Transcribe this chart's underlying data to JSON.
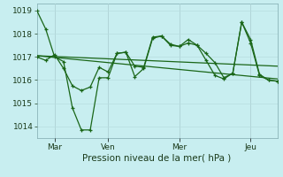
{
  "xlabel": "Pression niveau de la mer( hPa )",
  "bg_color": "#c8eef0",
  "grid_color": "#b8dde0",
  "line_color": "#1a6618",
  "vline_color": "#9abcbe",
  "ylim": [
    1013.5,
    1019.3
  ],
  "xlim": [
    0,
    27
  ],
  "x_ticks": [
    2,
    8,
    16,
    24
  ],
  "x_labels": [
    "Mar",
    "Ven",
    "Mer",
    "Jeu"
  ],
  "series_jagged1": [
    0,
    1019.0,
    1,
    1018.2,
    2,
    1017.0,
    3,
    1016.8,
    4,
    1014.8,
    5,
    1013.85,
    6,
    1013.85,
    7,
    1016.1,
    8,
    1016.1,
    9,
    1017.15,
    10,
    1017.2,
    11,
    1016.15,
    12,
    1016.5,
    13,
    1017.8,
    14,
    1017.9,
    15,
    1017.5,
    16,
    1017.45,
    17,
    1017.6,
    18,
    1017.5,
    19,
    1016.85,
    20,
    1016.2,
    21,
    1016.05,
    22,
    1016.3,
    23,
    1018.5,
    24,
    1017.6,
    25,
    1016.2,
    26,
    1016.0,
    27,
    1015.95
  ],
  "series_trend1_x": [
    0,
    27
  ],
  "series_trend1_y": [
    1017.05,
    1016.6
  ],
  "series_trend2_x": [
    0,
    27
  ],
  "series_trend2_y": [
    1017.05,
    1016.05
  ],
  "series_jagged2": [
    0,
    1017.0,
    1,
    1016.85,
    2,
    1017.1,
    3,
    1016.5,
    4,
    1015.75,
    5,
    1015.55,
    6,
    1015.7,
    7,
    1016.55,
    8,
    1016.35,
    9,
    1017.15,
    10,
    1017.2,
    11,
    1016.6,
    12,
    1016.55,
    13,
    1017.85,
    14,
    1017.9,
    15,
    1017.55,
    16,
    1017.45,
    17,
    1017.75,
    18,
    1017.5,
    19,
    1017.15,
    20,
    1016.75,
    21,
    1016.1,
    22,
    1016.3,
    23,
    1018.5,
    24,
    1017.75,
    25,
    1016.25,
    26,
    1016.0,
    27,
    1015.95
  ],
  "xlabel_fontsize": 7.5,
  "tick_fontsize": 6.5
}
